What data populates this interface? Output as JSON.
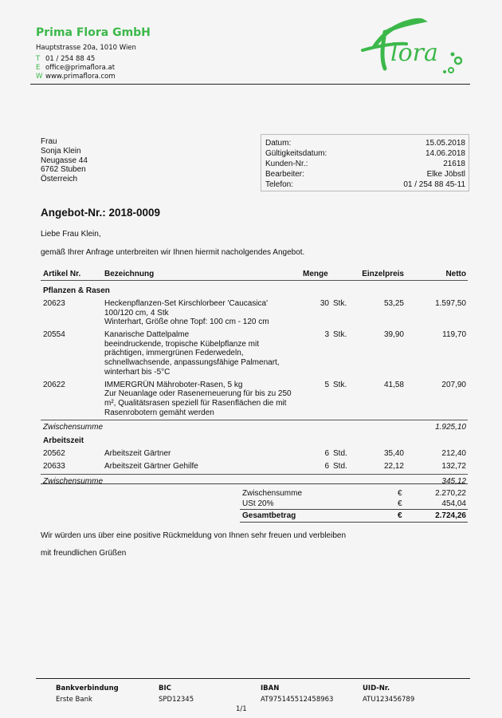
{
  "company": {
    "name": "Prima Flora GmbH",
    "address": "Hauptstrasse 20a, 1010 Wien",
    "contacts": [
      {
        "key": "T",
        "value": "01 / 254 88 45"
      },
      {
        "key": "E",
        "value": "office@primaflora.at"
      },
      {
        "key": "W",
        "value": "www.primaflora.com"
      }
    ],
    "logo_text": "Flora",
    "brand_color": "#3cb84a"
  },
  "recipient": [
    "Frau",
    "Sonja Klein",
    "Neugasse 44",
    "6762 Stuben",
    "Österreich"
  ],
  "info": [
    {
      "label": "Datum:",
      "value": "15.05.2018"
    },
    {
      "label": "Gültigkeitsdatum:",
      "value": "14.06.2018"
    },
    {
      "label": "Kunden-Nr.:",
      "value": "21618"
    },
    {
      "label": "Bearbeiter:",
      "value": "Elke Jöbstl"
    },
    {
      "label": "Telefon:",
      "value": "01 / 254 88 45-11"
    }
  ],
  "title": "Angebot-Nr.: 2018-0009",
  "greeting": "Liebe Frau Klein,",
  "intro": "gemäß Ihrer Anfrage unterbreiten wir Ihnen hiermit nacholgendes Angebot.",
  "table": {
    "headers": {
      "artikel": "Artikel Nr.",
      "bezeichnung": "Bezeichnung",
      "menge": "Menge",
      "einzelpreis": "Einzelpreis",
      "netto": "Netto"
    },
    "groups": [
      {
        "title": "Pflanzen & Rasen",
        "subtotal_label": "Zwischensumme",
        "subtotal": "1.925,10",
        "rows": [
          {
            "nr": "20623",
            "desc": "Heckenpflanzen-Set Kirschlorbeer 'Caucasica'\n100/120 cm, 4 Stk\nWinterhart, Größe ohne Topf: 100 cm - 120 cm",
            "qty": "30",
            "unit": "Stk.",
            "price": "53,25",
            "net": "1.597,50"
          },
          {
            "nr": "20554",
            "desc": "Kanarische Dattelpalme\nbeeindruckende, tropische Kübelpflanze mit\nprächtigen, immergrünen Federwedeln,\nschnellwachsende, anpassungsfähige Palmenart,\nwinterhart bis -5°C",
            "qty": "3",
            "unit": "Stk.",
            "price": "39,90",
            "net": "119,70"
          },
          {
            "nr": "20622",
            "desc": "IMMERGRÜN Mähroboter-Rasen, 5 kg\nZur Neuanlage oder Rasenerneuerung für bis zu 250\nm², Qualitätsrasen speziell für Rasenflächen die mit\nRasenrobotern gemäht werden",
            "qty": "5",
            "unit": "Stk.",
            "price": "41,58",
            "net": "207,90"
          }
        ]
      },
      {
        "title": "Arbeitszeit",
        "subtotal_label": "Zwischensumme",
        "subtotal": "345,12",
        "rows": [
          {
            "nr": "20562",
            "desc": "Arbeitszeit Gärtner",
            "qty": "6",
            "unit": "Std.",
            "price": "35,40",
            "net": "212,40"
          },
          {
            "nr": "20633",
            "desc": "Arbeitszeit Gärtner Gehilfe",
            "qty": "6",
            "unit": "Std.",
            "price": "22,12",
            "net": "132,72"
          }
        ]
      }
    ],
    "totals": [
      {
        "label": "Zwischensumme",
        "currency": "€",
        "value": "2.270,22"
      },
      {
        "label": "USt 20%",
        "currency": "€",
        "value": "454,04"
      },
      {
        "label": "Gesamtbetrag",
        "currency": "€",
        "value": "2.724,26"
      }
    ]
  },
  "closing": "Wir würden uns über eine positive Rückmeldung von Ihnen sehr freuen und verbleiben",
  "regards": "mit freundlichen Grüßen",
  "footer": {
    "cols": [
      {
        "h": "Bankverbindung",
        "v": "Erste Bank"
      },
      {
        "h": "BIC",
        "v": "SPD12345"
      },
      {
        "h": "IBAN",
        "v": "AT975145512458963"
      },
      {
        "h": "UID-Nr.",
        "v": "ATU123456789"
      }
    ],
    "page": "1/1"
  }
}
